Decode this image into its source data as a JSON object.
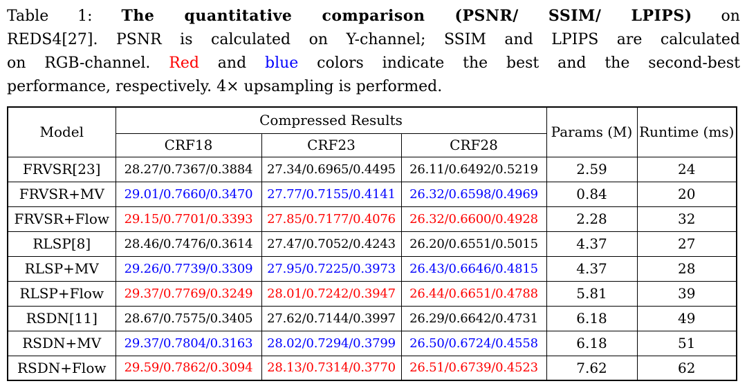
{
  "caption": {
    "line1_prefix": "Table 1: ",
    "line1_bold": "The quantitative comparison (PSNR/ SSIM/ LPIPS)",
    "line1_suffix": " on",
    "line2": "REDS4[27]. PSNR is calculated on Y-channel; SSIM and LPIPS are calculated",
    "line3_pre": "on RGB-channel. ",
    "line3_red": "Red",
    "line3_mid": " and ",
    "line3_blue": "blue",
    "line3_post": " colors indicate the best and the second-best",
    "line4": "performance, respectively. 4× upsampling is performed."
  },
  "colors": {
    "best": "#fe0000",
    "second_best": "#0000fe",
    "text": "#000000"
  },
  "table": {
    "header": {
      "model": "Model",
      "compressed": "Compressed Results",
      "crf18": "CRF18",
      "crf23": "CRF23",
      "crf28": "CRF28",
      "params": "Params (M)",
      "runtime": "Runtime (ms)"
    },
    "rows": [
      {
        "model": "FRVSR[23]",
        "color": "black",
        "crf18": "28.27/0.7367/0.3884",
        "crf23": "27.34/0.6965/0.4495",
        "crf28": "26.11/0.6492/0.5219",
        "params": "2.59",
        "runtime": "24"
      },
      {
        "model": "FRVSR+MV",
        "color": "blue",
        "crf18": "29.01/0.7660/0.3470",
        "crf23": "27.77/0.7155/0.4141",
        "crf28": "26.32/0.6598/0.4969",
        "params": "0.84",
        "runtime": "20"
      },
      {
        "model": "FRVSR+Flow",
        "color": "red",
        "crf18": "29.15/0.7701/0.3393",
        "crf23": "27.85/0.7177/0.4076",
        "crf28": "26.32/0.6600/0.4928",
        "params": "2.28",
        "runtime": "32"
      },
      {
        "model": "RLSP[8]",
        "color": "black",
        "crf18": "28.46/0.7476/0.3614",
        "crf23": "27.47/0.7052/0.4243",
        "crf28": "26.20/0.6551/0.5015",
        "params": "4.37",
        "runtime": "27"
      },
      {
        "model": "RLSP+MV",
        "color": "blue",
        "crf18": "29.26/0.7739/0.3309",
        "crf23": "27.95/0.7225/0.3973",
        "crf28": "26.43/0.6646/0.4815",
        "params": "4.37",
        "runtime": "28"
      },
      {
        "model": "RLSP+Flow",
        "color": "red",
        "crf18": "29.37/0.7769/0.3249",
        "crf23": "28.01/0.7242/0.3947",
        "crf28": "26.44/0.6651/0.4788",
        "params": "5.81",
        "runtime": "39"
      },
      {
        "model": "RSDN[11]",
        "color": "black",
        "crf18": "28.67/0.7575/0.3405",
        "crf23": "27.62/0.7144/0.3997",
        "crf28": "26.29/0.6642/0.4731",
        "params": "6.18",
        "runtime": "49"
      },
      {
        "model": "RSDN+MV",
        "color": "blue",
        "crf18": "29.37/0.7804/0.3163",
        "crf23": "28.02/0.7294/0.3799",
        "crf28": "26.50/0.6724/0.4558",
        "params": "6.18",
        "runtime": "51"
      },
      {
        "model": "RSDN+Flow",
        "color": "red",
        "crf18": "29.59/0.7862/0.3094",
        "crf23": "28.13/0.7314/0.3770",
        "crf28": "26.51/0.6739/0.4523",
        "params": "7.62",
        "runtime": "62"
      }
    ]
  }
}
